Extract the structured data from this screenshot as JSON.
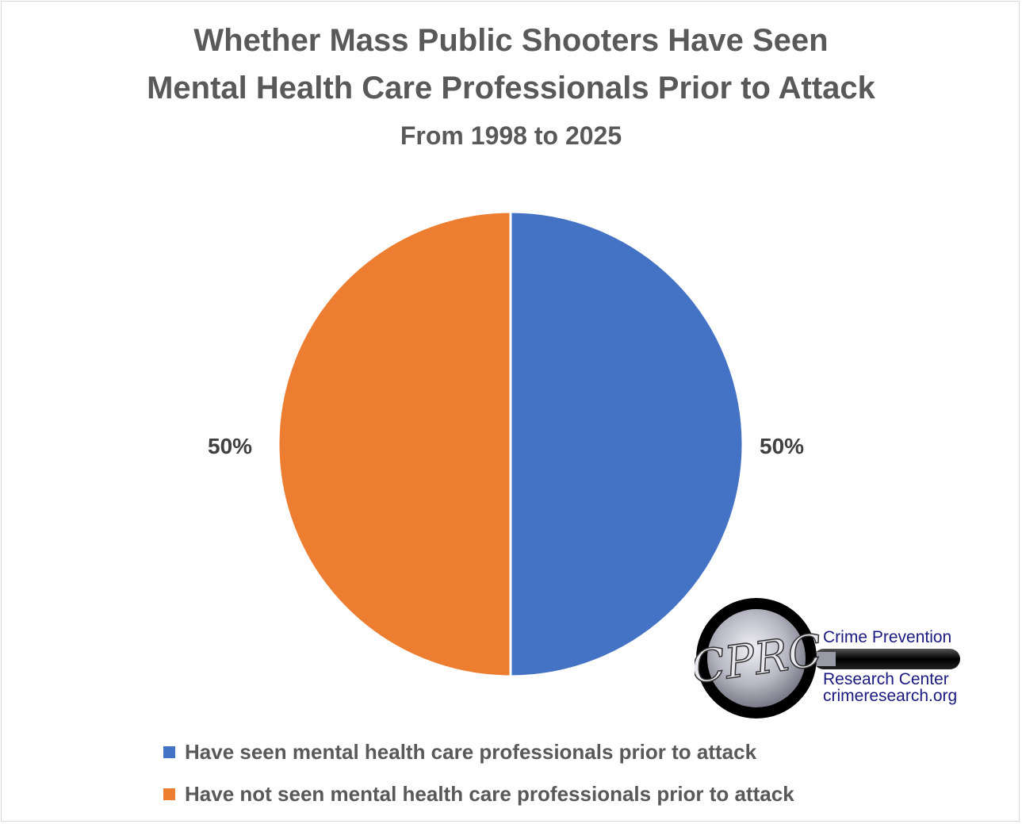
{
  "chart_data": {
    "type": "pie",
    "title": "Whether Mass Public Shooters Have Seen",
    "title_line2": "Mental Health Care Professionals Prior to Attack",
    "subtitle": "From 1998 to 2025",
    "slices": [
      {
        "name": "Have seen mental health care professionals prior to attack",
        "value": 50,
        "label": "50%",
        "color": "#4472c4"
      },
      {
        "name": "Have not seen mental health care professionals prior to attack",
        "value": 50,
        "label": "50%",
        "color": "#ed7d31"
      }
    ],
    "legend_position": "bottom-left"
  },
  "logo": {
    "mark": "CPRC",
    "line1": "Crime Prevention",
    "line2": "Research Center",
    "line3": "crimeresearch.org"
  }
}
